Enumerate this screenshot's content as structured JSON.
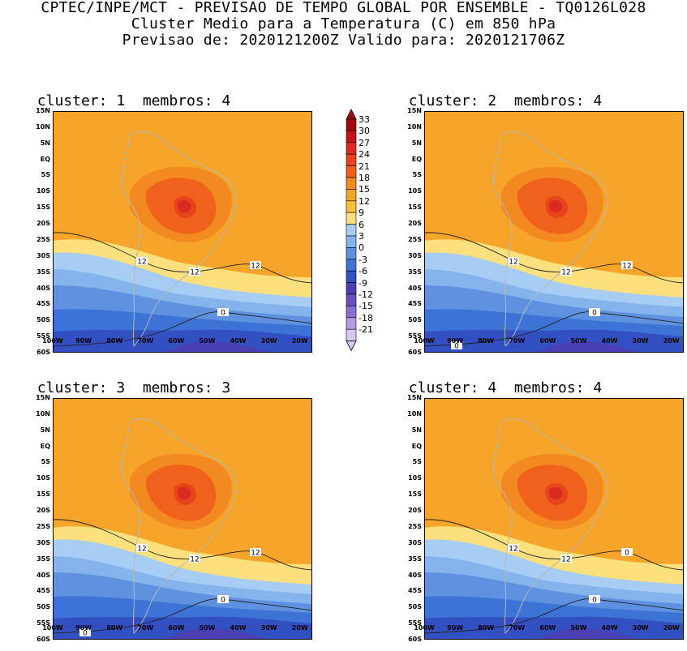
{
  "header": {
    "line1": "CPTEC/INPE/MCT - PREVISAO DE TEMPO GLOBAL POR ENSEMBLE - TQ0126L028",
    "line2": "Cluster Medio para a Temperatura (C) em 850 hPa",
    "line3": "Previsao de: 2020121200Z   Valido para: 2020121706Z"
  },
  "panels": [
    {
      "title": "cluster: 1  membros: 4",
      "contour_labels": [
        "12",
        "12",
        "12",
        "0"
      ]
    },
    {
      "title": "cluster: 2  membros: 4",
      "contour_labels": [
        "12",
        "12",
        "12",
        "0",
        "0"
      ]
    },
    {
      "title": "cluster: 3  membros: 3",
      "contour_labels": [
        "12",
        "12",
        "12",
        "0",
        "0"
      ]
    },
    {
      "title": "cluster: 4  membros: 4",
      "contour_labels": [
        "12",
        "12",
        "0",
        "0"
      ]
    }
  ],
  "lat_ticks": [
    "15N",
    "10N",
    "5N",
    "EQ",
    "5S",
    "10S",
    "15S",
    "20S",
    "25S",
    "30S",
    "35S",
    "40S",
    "45S",
    "50S",
    "55S",
    "60S"
  ],
  "lon_ticks": [
    "100W",
    "90W",
    "80W",
    "70W",
    "60W",
    "50W",
    "40W",
    "30W",
    "20W"
  ],
  "colorbar": {
    "labels": [
      "33",
      "30",
      "27",
      "24",
      "21",
      "18",
      "15",
      "12",
      "9",
      "6",
      "3",
      "0",
      "-3",
      "-6",
      "-9",
      "-12",
      "-15",
      "-18",
      "-21"
    ],
    "colors": [
      "#9e0a0f",
      "#c01419",
      "#d92b20",
      "#e8441c",
      "#f0621b",
      "#f38a21",
      "#f6a52a",
      "#f9be3c",
      "#fbe07d",
      "#a7cdf5",
      "#85b3ec",
      "#5e92e0",
      "#3e73d6",
      "#3350c2",
      "#4a3fb3",
      "#6a4fc2",
      "#8a6fd4",
      "#b49be4",
      "#d6c6f2"
    ]
  }
}
